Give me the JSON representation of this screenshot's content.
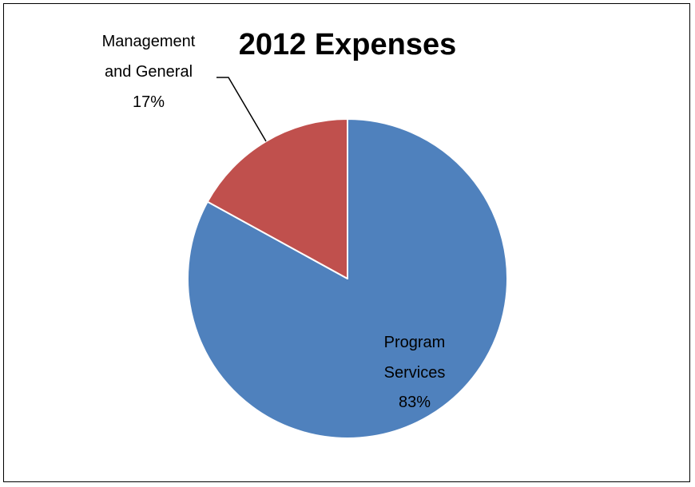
{
  "chart_data": {
    "type": "pie",
    "title": "2012 Expenses",
    "slices": [
      {
        "label_lines": [
          "Program",
          "Services"
        ],
        "value": 83,
        "value_label": "83%",
        "color": "#4F81BD"
      },
      {
        "label_lines": [
          "Management",
          "and General"
        ],
        "value": 17,
        "value_label": "17%",
        "color": "#C0504D"
      }
    ],
    "start_angle_deg": 0,
    "direction": "clockwise",
    "legend": "none"
  }
}
